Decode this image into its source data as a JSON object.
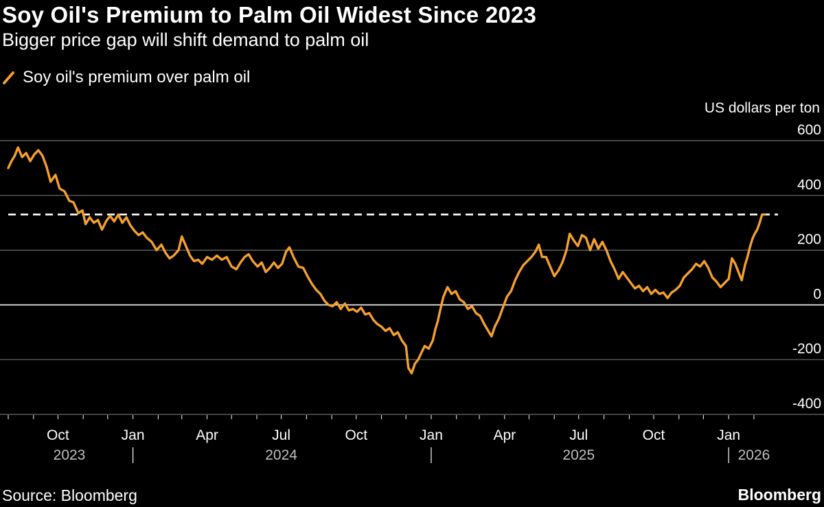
{
  "header": {
    "title": "Soy Oil's Premium to Palm Oil Widest Since 2023",
    "subtitle": "Bigger price gap will shift demand to palm oil"
  },
  "footer": {
    "source": "Source: Bloomberg",
    "brand": "Bloomberg"
  },
  "colors": {
    "background": "#000000",
    "series": "#f5a030",
    "grid": "#6e6e6e",
    "zero_line": "#ffffff",
    "reference_line": "#ffffff",
    "axis_text": "#ffffff",
    "year_text": "#bfbfbf"
  },
  "chart_data": {
    "type": "line",
    "title": "Soy Oil's Premium to Palm Oil Widest Since 2023",
    "subtitle": "Bigger price gap will shift demand to palm oil",
    "ylabel": "US dollars per ton",
    "ylim": [
      -400,
      600
    ],
    "yticks": [
      600,
      400,
      200,
      0,
      -200,
      -400
    ],
    "grid": true,
    "legend": {
      "position": "top-left",
      "entries": [
        "Soy oil's premium over palm oil"
      ]
    },
    "reference_line": {
      "y": 330,
      "style": "dashed"
    },
    "xlim": [
      "2023-08-01",
      "2026-02-28"
    ],
    "xticks": [
      {
        "date": "2023-10-01",
        "label": "Oct"
      },
      {
        "date": "2024-01-01",
        "label": "Jan"
      },
      {
        "date": "2024-04-01",
        "label": "Apr"
      },
      {
        "date": "2024-07-01",
        "label": "Jul"
      },
      {
        "date": "2024-10-01",
        "label": "Oct"
      },
      {
        "date": "2025-01-01",
        "label": "Jan"
      },
      {
        "date": "2025-04-01",
        "label": "Apr"
      },
      {
        "date": "2025-07-01",
        "label": "Jul"
      },
      {
        "date": "2025-10-01",
        "label": "Oct"
      },
      {
        "date": "2026-01-01",
        "label": "Jan"
      }
    ],
    "year_labels": [
      {
        "date": "2023-10-15",
        "label": "2023"
      },
      {
        "date": "2024-07-01",
        "label": "2024"
      },
      {
        "date": "2025-07-01",
        "label": "2025"
      },
      {
        "date": "2026-02-01",
        "label": "2026"
      }
    ],
    "year_separators": [
      "2024-01-01",
      "2025-01-01",
      "2026-01-01"
    ],
    "series": [
      {
        "name": "Soy oil's premium over palm oil",
        "points": [
          [
            "2023-08-01",
            500
          ],
          [
            "2023-08-05",
            525
          ],
          [
            "2023-08-09",
            545
          ],
          [
            "2023-08-13",
            575
          ],
          [
            "2023-08-18",
            540
          ],
          [
            "2023-08-23",
            555
          ],
          [
            "2023-08-28",
            525
          ],
          [
            "2023-09-02",
            550
          ],
          [
            "2023-09-07",
            565
          ],
          [
            "2023-09-12",
            545
          ],
          [
            "2023-09-17",
            505
          ],
          [
            "2023-09-22",
            450
          ],
          [
            "2023-09-28",
            475
          ],
          [
            "2023-10-03",
            425
          ],
          [
            "2023-10-09",
            415
          ],
          [
            "2023-10-15",
            380
          ],
          [
            "2023-10-20",
            375
          ],
          [
            "2023-10-26",
            335
          ],
          [
            "2023-10-31",
            345
          ],
          [
            "2023-11-04",
            295
          ],
          [
            "2023-11-09",
            320
          ],
          [
            "2023-11-14",
            300
          ],
          [
            "2023-11-19",
            310
          ],
          [
            "2023-11-24",
            275
          ],
          [
            "2023-11-29",
            305
          ],
          [
            "2023-12-04",
            325
          ],
          [
            "2023-12-09",
            305
          ],
          [
            "2023-12-14",
            330
          ],
          [
            "2023-12-19",
            300
          ],
          [
            "2023-12-24",
            320
          ],
          [
            "2023-12-29",
            290
          ],
          [
            "2024-01-03",
            270
          ],
          [
            "2024-01-08",
            255
          ],
          [
            "2024-01-13",
            265
          ],
          [
            "2024-01-18",
            245
          ],
          [
            "2024-01-24",
            230
          ],
          [
            "2024-01-30",
            200
          ],
          [
            "2024-02-05",
            220
          ],
          [
            "2024-02-10",
            190
          ],
          [
            "2024-02-15",
            170
          ],
          [
            "2024-02-20",
            180
          ],
          [
            "2024-02-26",
            200
          ],
          [
            "2024-03-01",
            250
          ],
          [
            "2024-03-06",
            215
          ],
          [
            "2024-03-11",
            180
          ],
          [
            "2024-03-16",
            160
          ],
          [
            "2024-03-21",
            165
          ],
          [
            "2024-03-26",
            150
          ],
          [
            "2024-04-01",
            175
          ],
          [
            "2024-04-07",
            165
          ],
          [
            "2024-04-13",
            180
          ],
          [
            "2024-04-19",
            165
          ],
          [
            "2024-04-25",
            175
          ],
          [
            "2024-05-01",
            140
          ],
          [
            "2024-05-07",
            130
          ],
          [
            "2024-05-12",
            155
          ],
          [
            "2024-05-17",
            175
          ],
          [
            "2024-05-22",
            185
          ],
          [
            "2024-05-27",
            160
          ],
          [
            "2024-06-02",
            140
          ],
          [
            "2024-06-07",
            155
          ],
          [
            "2024-06-12",
            120
          ],
          [
            "2024-06-17",
            135
          ],
          [
            "2024-06-22",
            155
          ],
          [
            "2024-06-27",
            135
          ],
          [
            "2024-07-02",
            150
          ],
          [
            "2024-07-07",
            195
          ],
          [
            "2024-07-11",
            210
          ],
          [
            "2024-07-16",
            175
          ],
          [
            "2024-07-22",
            140
          ],
          [
            "2024-07-28",
            135
          ],
          [
            "2024-08-03",
            100
          ],
          [
            "2024-08-08",
            75
          ],
          [
            "2024-08-13",
            55
          ],
          [
            "2024-08-18",
            40
          ],
          [
            "2024-08-23",
            15
          ],
          [
            "2024-08-28",
            0
          ],
          [
            "2024-09-02",
            -5
          ],
          [
            "2024-09-07",
            10
          ],
          [
            "2024-09-12",
            -15
          ],
          [
            "2024-09-17",
            5
          ],
          [
            "2024-09-22",
            -20
          ],
          [
            "2024-09-27",
            -15
          ],
          [
            "2024-10-02",
            -25
          ],
          [
            "2024-10-07",
            -10
          ],
          [
            "2024-10-12",
            -35
          ],
          [
            "2024-10-17",
            -30
          ],
          [
            "2024-10-22",
            -55
          ],
          [
            "2024-10-27",
            -70
          ],
          [
            "2024-11-01",
            -80
          ],
          [
            "2024-11-06",
            -95
          ],
          [
            "2024-11-11",
            -85
          ],
          [
            "2024-11-16",
            -110
          ],
          [
            "2024-11-21",
            -100
          ],
          [
            "2024-11-26",
            -130
          ],
          [
            "2024-12-01",
            -150
          ],
          [
            "2024-12-04",
            -230
          ],
          [
            "2024-12-08",
            -250
          ],
          [
            "2024-12-12",
            -215
          ],
          [
            "2024-12-16",
            -200
          ],
          [
            "2024-12-20",
            -175
          ],
          [
            "2024-12-24",
            -150
          ],
          [
            "2024-12-29",
            -160
          ],
          [
            "2025-01-03",
            -130
          ],
          [
            "2025-01-06",
            -90
          ],
          [
            "2025-01-09",
            -60
          ],
          [
            "2025-01-12",
            -20
          ],
          [
            "2025-01-16",
            30
          ],
          [
            "2025-01-21",
            65
          ],
          [
            "2025-01-26",
            40
          ],
          [
            "2025-01-31",
            50
          ],
          [
            "2025-02-05",
            20
          ],
          [
            "2025-02-10",
            10
          ],
          [
            "2025-02-15",
            -15
          ],
          [
            "2025-02-20",
            -5
          ],
          [
            "2025-02-25",
            -30
          ],
          [
            "2025-03-02",
            -40
          ],
          [
            "2025-03-07",
            -70
          ],
          [
            "2025-03-12",
            -95
          ],
          [
            "2025-03-16",
            -115
          ],
          [
            "2025-03-20",
            -80
          ],
          [
            "2025-03-25",
            -50
          ],
          [
            "2025-03-30",
            -10
          ],
          [
            "2025-04-04",
            30
          ],
          [
            "2025-04-09",
            50
          ],
          [
            "2025-04-14",
            90
          ],
          [
            "2025-04-19",
            120
          ],
          [
            "2025-04-24",
            145
          ],
          [
            "2025-04-29",
            160
          ],
          [
            "2025-05-04",
            175
          ],
          [
            "2025-05-09",
            195
          ],
          [
            "2025-05-13",
            220
          ],
          [
            "2025-05-17",
            175
          ],
          [
            "2025-05-22",
            175
          ],
          [
            "2025-05-27",
            140
          ],
          [
            "2025-06-01",
            105
          ],
          [
            "2025-06-06",
            125
          ],
          [
            "2025-06-11",
            155
          ],
          [
            "2025-06-16",
            200
          ],
          [
            "2025-06-20",
            260
          ],
          [
            "2025-06-25",
            235
          ],
          [
            "2025-06-30",
            215
          ],
          [
            "2025-07-05",
            255
          ],
          [
            "2025-07-10",
            245
          ],
          [
            "2025-07-15",
            200
          ],
          [
            "2025-07-20",
            240
          ],
          [
            "2025-07-25",
            205
          ],
          [
            "2025-07-30",
            230
          ],
          [
            "2025-08-04",
            200
          ],
          [
            "2025-08-09",
            160
          ],
          [
            "2025-08-14",
            130
          ],
          [
            "2025-08-19",
            95
          ],
          [
            "2025-08-24",
            120
          ],
          [
            "2025-08-29",
            100
          ],
          [
            "2025-09-03",
            80
          ],
          [
            "2025-09-08",
            60
          ],
          [
            "2025-09-13",
            70
          ],
          [
            "2025-09-18",
            50
          ],
          [
            "2025-09-23",
            65
          ],
          [
            "2025-09-28",
            40
          ],
          [
            "2025-10-03",
            55
          ],
          [
            "2025-10-08",
            40
          ],
          [
            "2025-10-13",
            45
          ],
          [
            "2025-10-18",
            25
          ],
          [
            "2025-10-23",
            45
          ],
          [
            "2025-10-28",
            55
          ],
          [
            "2025-11-02",
            70
          ],
          [
            "2025-11-07",
            100
          ],
          [
            "2025-11-12",
            115
          ],
          [
            "2025-11-17",
            130
          ],
          [
            "2025-11-22",
            150
          ],
          [
            "2025-11-27",
            140
          ],
          [
            "2025-12-02",
            160
          ],
          [
            "2025-12-07",
            135
          ],
          [
            "2025-12-12",
            100
          ],
          [
            "2025-12-17",
            85
          ],
          [
            "2025-12-22",
            65
          ],
          [
            "2025-12-27",
            80
          ],
          [
            "2026-01-01",
            95
          ],
          [
            "2026-01-05",
            170
          ],
          [
            "2026-01-09",
            150
          ],
          [
            "2026-01-13",
            120
          ],
          [
            "2026-01-17",
            90
          ],
          [
            "2026-01-21",
            145
          ],
          [
            "2026-01-24",
            175
          ],
          [
            "2026-01-27",
            210
          ],
          [
            "2026-01-30",
            240
          ],
          [
            "2026-02-02",
            260
          ],
          [
            "2026-02-05",
            275
          ],
          [
            "2026-02-08",
            300
          ],
          [
            "2026-02-11",
            330
          ],
          [
            "2026-02-14",
            330
          ]
        ]
      }
    ]
  }
}
